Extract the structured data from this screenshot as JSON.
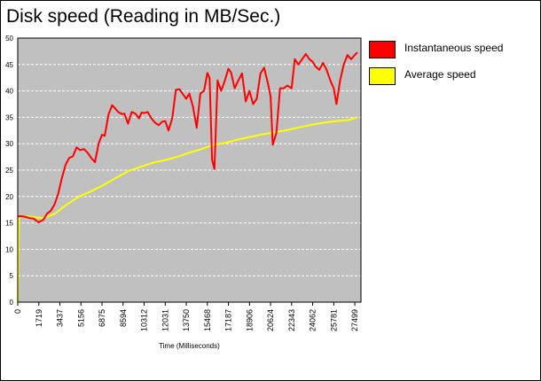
{
  "chart_data": {
    "type": "line",
    "title": "Disk speed (Reading in MB/Sec.)",
    "xlabel": "Time (Milliseconds)",
    "ylabel": "",
    "ylim": [
      0,
      50
    ],
    "xlim": [
      0,
      28000
    ],
    "yticks": [
      0,
      5,
      10,
      15,
      20,
      25,
      30,
      35,
      40,
      45,
      50
    ],
    "xticks": [
      0,
      1719,
      3437,
      5156,
      6875,
      8594,
      10312,
      12031,
      13750,
      15468,
      17187,
      18906,
      20624,
      22343,
      24062,
      25781,
      27499
    ],
    "grid": "horizontal-dashed",
    "legend_position": "right",
    "colors": {
      "plot_background": "#c0c0c0",
      "grid": "#ffffff",
      "axis": "#000000"
    },
    "series": [
      {
        "name": "Instantaneous speed",
        "color": "#ff0000",
        "x": [
          0,
          200,
          500,
          1000,
          1300,
          1700,
          2100,
          2400,
          2700,
          3000,
          3300,
          3600,
          3900,
          4200,
          4500,
          4800,
          5100,
          5400,
          5700,
          6000,
          6300,
          6600,
          6875,
          7100,
          7400,
          7700,
          7900,
          8200,
          8500,
          8700,
          9000,
          9300,
          9600,
          9900,
          10100,
          10312,
          10600,
          10900,
          11200,
          11500,
          11800,
          12031,
          12300,
          12600,
          12900,
          13200,
          13500,
          13750,
          14000,
          14300,
          14600,
          14900,
          15200,
          15468,
          15650,
          15850,
          16050,
          16300,
          16600,
          16900,
          17187,
          17400,
          17700,
          18000,
          18300,
          18600,
          18906,
          19200,
          19500,
          19800,
          20100,
          20400,
          20624,
          20800,
          21100,
          21400,
          21700,
          22000,
          22343,
          22600,
          22900,
          23200,
          23500,
          23800,
          24062,
          24300,
          24600,
          24900,
          25200,
          25500,
          25781,
          26000,
          26300,
          26600,
          26900,
          27200,
          27499,
          27700
        ],
        "values": [
          16.2,
          16.3,
          16.2,
          15.9,
          15.8,
          15.1,
          15.6,
          16.8,
          17.3,
          18.5,
          20.5,
          23.5,
          26.0,
          27.3,
          27.6,
          29.3,
          28.8,
          29.0,
          28.3,
          27.3,
          26.5,
          30.0,
          31.7,
          31.5,
          35.5,
          37.3,
          36.8,
          36.0,
          35.6,
          35.7,
          33.8,
          36.0,
          35.7,
          34.8,
          35.9,
          35.8,
          36.0,
          34.8,
          34.0,
          33.5,
          34.2,
          34.3,
          32.5,
          34.8,
          40.2,
          40.3,
          39.3,
          38.5,
          39.5,
          37.0,
          33.0,
          39.5,
          40.0,
          43.4,
          42.5,
          27.0,
          25.2,
          42.0,
          40.0,
          42.0,
          44.2,
          43.5,
          40.5,
          42.0,
          43.3,
          38.0,
          40.0,
          37.5,
          38.5,
          43.3,
          44.4,
          41.5,
          39.0,
          29.8,
          32.0,
          40.5,
          40.5,
          41.0,
          40.5,
          46.0,
          45.0,
          46.0,
          47.0,
          46.0,
          45.5,
          44.6,
          44.0,
          45.3,
          44.0,
          42.0,
          40.5,
          37.5,
          42.0,
          45.0,
          46.8,
          46.0,
          46.8,
          47.3
        ]
      },
      {
        "name": "Average speed",
        "color": "#ffff00",
        "x": [
          0,
          100,
          1000,
          2000,
          3000,
          4000,
          5000,
          6000,
          7000,
          8000,
          9000,
          10000,
          11000,
          12000,
          13000,
          14000,
          15000,
          16000,
          17000,
          18000,
          19000,
          20000,
          21000,
          22000,
          23000,
          24000,
          25000,
          26000,
          27000,
          27700
        ],
        "values": [
          0,
          16.3,
          16.2,
          15.9,
          16.7,
          18.5,
          20.0,
          21.0,
          22.2,
          23.5,
          24.8,
          25.6,
          26.4,
          26.9,
          27.5,
          28.3,
          29.0,
          29.8,
          30.2,
          30.8,
          31.3,
          31.8,
          32.2,
          32.6,
          33.1,
          33.6,
          34.0,
          34.3,
          34.5,
          35.0
        ]
      }
    ]
  }
}
